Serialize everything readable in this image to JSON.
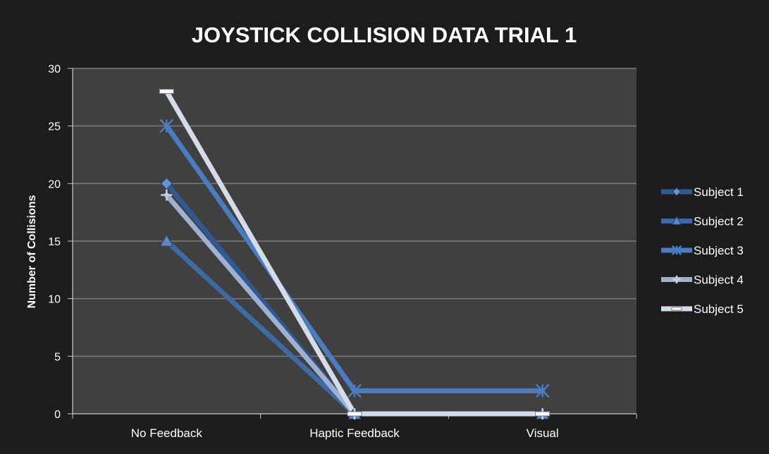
{
  "chart_data": {
    "type": "line",
    "title": "JOYSTICK COLLISION DATA TRIAL 1",
    "xlabel": "",
    "ylabel": "Number of Collisions",
    "categories": [
      "No Feedback",
      "Haptic Feedback",
      "Visual"
    ],
    "ylim": [
      0,
      30
    ],
    "yticks": [
      0,
      5,
      10,
      15,
      20,
      25,
      30
    ],
    "grid": true,
    "legend_position": "right",
    "series": [
      {
        "name": "Subject 1",
        "values": [
          20,
          0,
          0
        ],
        "color": "#2e5a91",
        "marker": "diamond"
      },
      {
        "name": "Subject 2",
        "values": [
          15,
          0,
          0
        ],
        "color": "#3e6aa3",
        "marker": "triangle"
      },
      {
        "name": "Subject 3",
        "values": [
          25,
          2,
          2
        ],
        "color": "#4a7cc0",
        "marker": "star"
      },
      {
        "name": "Subject 4",
        "values": [
          19,
          0,
          0
        ],
        "color": "#9fb0d0",
        "marker": "plus"
      },
      {
        "name": "Subject 5",
        "values": [
          28,
          0,
          0
        ],
        "color": "#d4dcea",
        "marker": "dash"
      }
    ],
    "colors": {
      "background": "#1c1c1c",
      "plot_area": "#404040",
      "gridline": "#7a7a7a",
      "text": "#ffffff"
    }
  }
}
